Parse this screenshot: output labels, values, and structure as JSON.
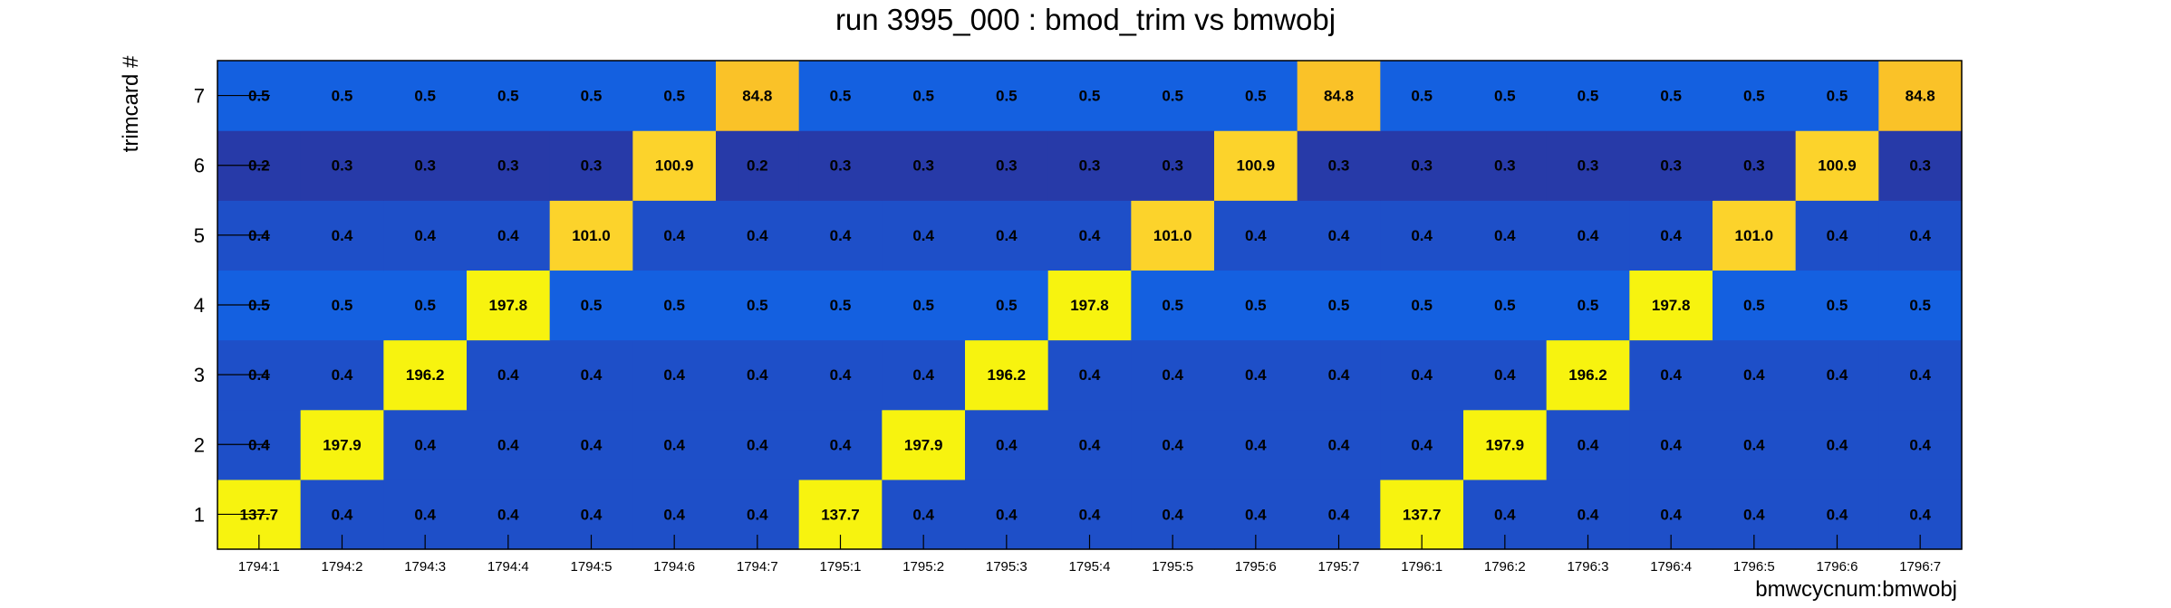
{
  "chart_data": {
    "type": "heatmap",
    "title": "run 3995_000 : bmod_trim vs bmwobj",
    "xlabel": "bmwcycnum:bmwobj",
    "ylabel": "trimcard #",
    "x_categories": [
      "1794:1",
      "1794:2",
      "1794:3",
      "1794:4",
      "1794:5",
      "1794:6",
      "1794:7",
      "1795:1",
      "1795:2",
      "1795:3",
      "1795:4",
      "1795:5",
      "1795:6",
      "1795:7",
      "1796:1",
      "1796:2",
      "1796:3",
      "1796:4",
      "1796:5",
      "1796:6",
      "1796:7"
    ],
    "y_categories": [
      "1",
      "2",
      "3",
      "4",
      "5",
      "6",
      "7"
    ],
    "values": [
      [
        137.7,
        0.4,
        0.4,
        0.4,
        0.4,
        0.4,
        0.4,
        137.7,
        0.4,
        0.4,
        0.4,
        0.4,
        0.4,
        0.4,
        137.7,
        0.4,
        0.4,
        0.4,
        0.4,
        0.4,
        0.4
      ],
      [
        0.4,
        197.9,
        0.4,
        0.4,
        0.4,
        0.4,
        0.4,
        0.4,
        197.9,
        0.4,
        0.4,
        0.4,
        0.4,
        0.4,
        0.4,
        197.9,
        0.4,
        0.4,
        0.4,
        0.4,
        0.4
      ],
      [
        0.4,
        0.4,
        196.2,
        0.4,
        0.4,
        0.4,
        0.4,
        0.4,
        0.4,
        196.2,
        0.4,
        0.4,
        0.4,
        0.4,
        0.4,
        0.4,
        196.2,
        0.4,
        0.4,
        0.4,
        0.4
      ],
      [
        0.5,
        0.5,
        0.5,
        197.8,
        0.5,
        0.5,
        0.5,
        0.5,
        0.5,
        0.5,
        197.8,
        0.5,
        0.5,
        0.5,
        0.5,
        0.5,
        0.5,
        197.8,
        0.5,
        0.5,
        0.5
      ],
      [
        0.4,
        0.4,
        0.4,
        0.4,
        101.0,
        0.4,
        0.4,
        0.4,
        0.4,
        0.4,
        0.4,
        101.0,
        0.4,
        0.4,
        0.4,
        0.4,
        0.4,
        0.4,
        101.0,
        0.4,
        0.4
      ],
      [
        0.2,
        0.3,
        0.3,
        0.3,
        0.3,
        100.9,
        0.2,
        0.3,
        0.3,
        0.3,
        0.3,
        0.3,
        100.9,
        0.3,
        0.3,
        0.3,
        0.3,
        0.3,
        0.3,
        100.9,
        0.3
      ],
      [
        0.5,
        0.5,
        0.5,
        0.5,
        0.5,
        0.5,
        84.8,
        0.5,
        0.5,
        0.5,
        0.5,
        0.5,
        0.5,
        84.8,
        0.5,
        0.5,
        0.5,
        0.5,
        0.5,
        0.5,
        84.8
      ]
    ],
    "colors": {
      "high": "#f7f30f",
      "mid_high": "#fcd32b",
      "mid_high_2": "#fac228",
      "low_light": "#1460e0",
      "low": "#1e4fc8",
      "lowest": "#273aa8"
    },
    "grid": false,
    "legend": "none"
  }
}
